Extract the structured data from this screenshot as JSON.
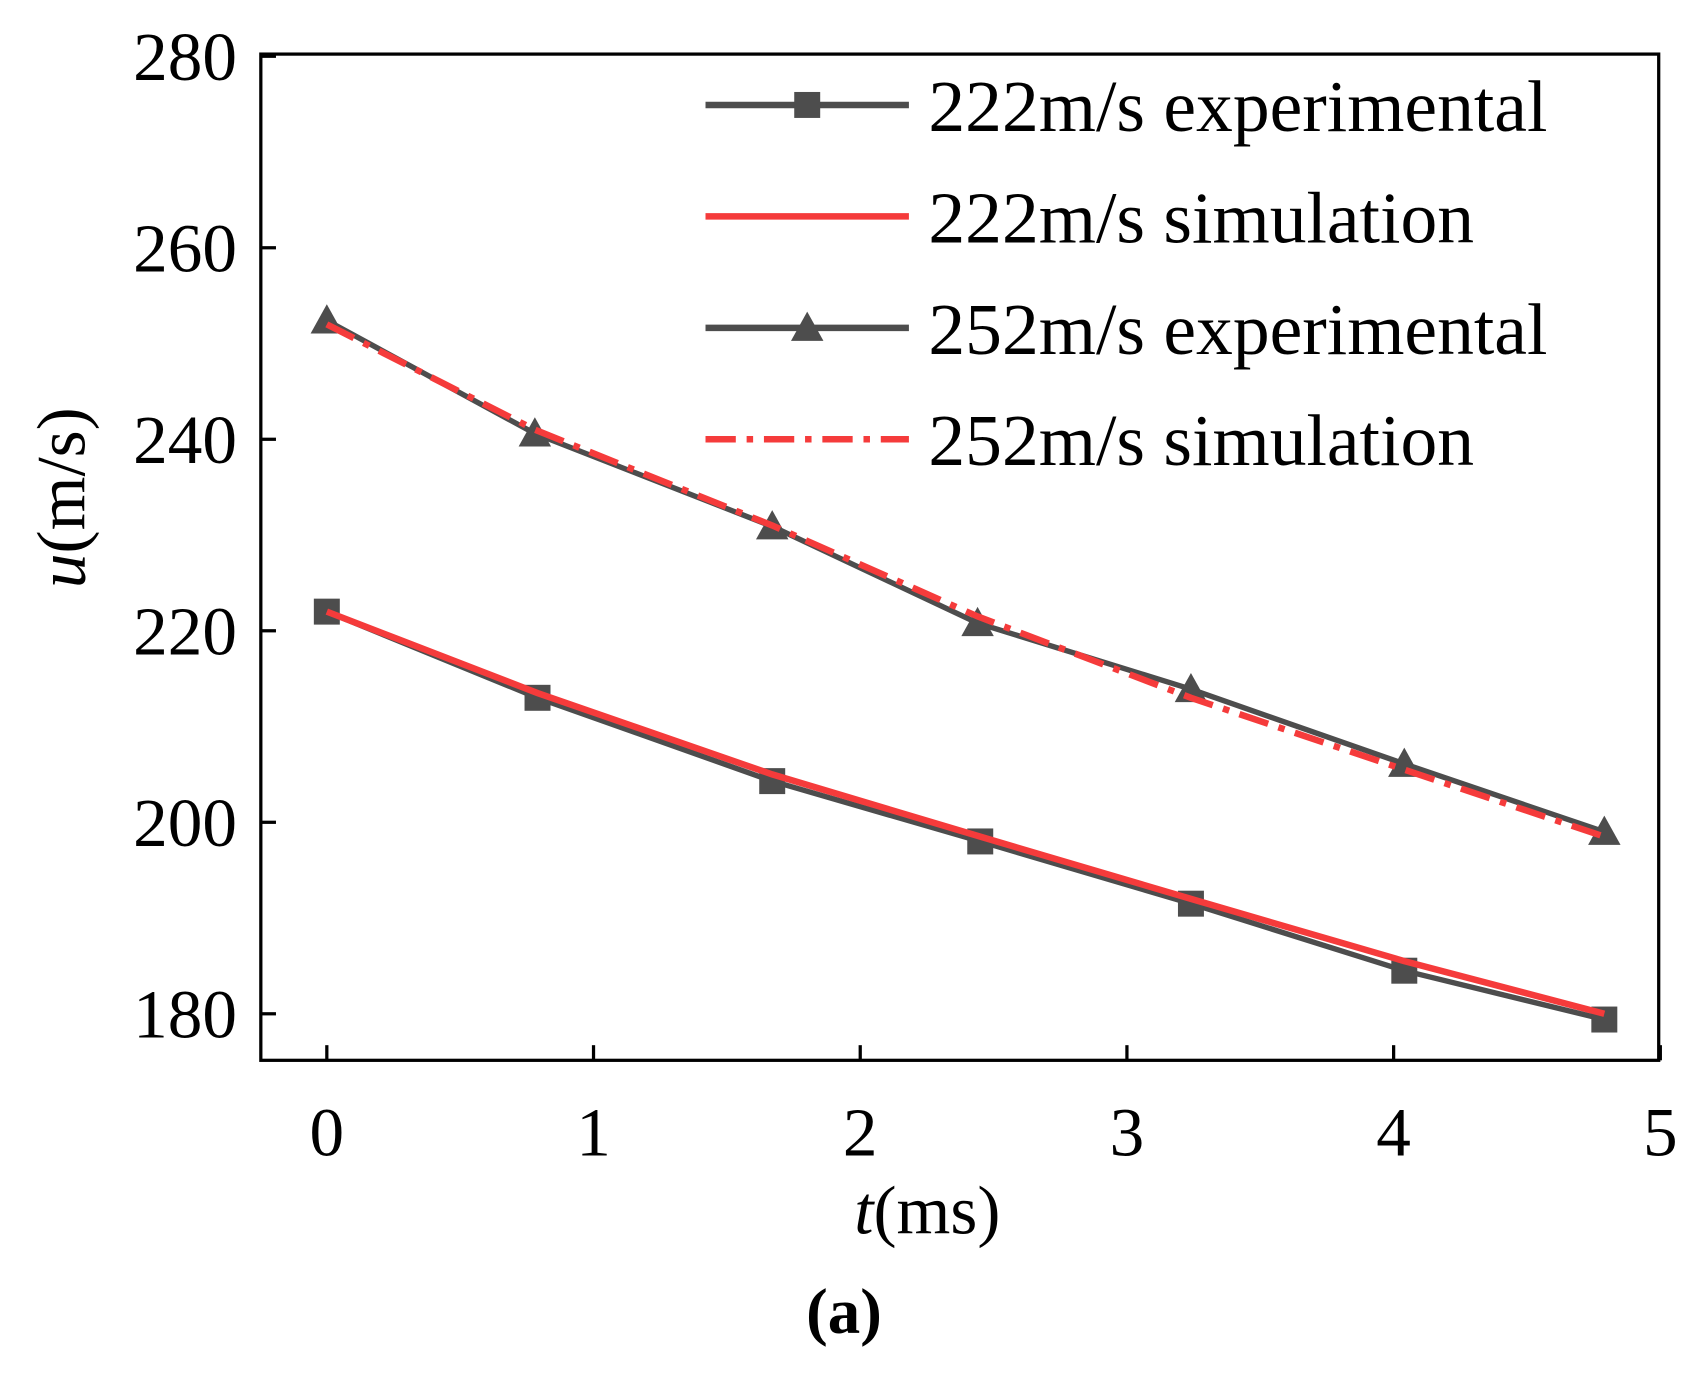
{
  "chart_data": {
    "type": "line",
    "title": "",
    "caption": "(a)",
    "xlabel_var": "t",
    "xlabel_unit": "(ms)",
    "ylabel_var": "u",
    "ylabel_unit": "(m/s)",
    "xlim": [
      -0.25,
      5
    ],
    "ylim": [
      175,
      280
    ],
    "xticks": [
      0,
      1,
      2,
      3,
      4,
      5
    ],
    "yticks": [
      180,
      200,
      220,
      240,
      260,
      280
    ],
    "grid": false,
    "legend_position": "top-right",
    "series": [
      {
        "name": "222m/s experimental",
        "color": "#4d4d4d",
        "marker": "square",
        "dash": "solid",
        "x": [
          0,
          0.79,
          1.67,
          2.45,
          3.24,
          4.04,
          4.79
        ],
        "y": [
          222,
          213,
          204.3,
          198,
          191.5,
          184.5,
          179.4
        ]
      },
      {
        "name": "222m/s simulation",
        "color": "#f53b3b",
        "marker": "none",
        "dash": "solid",
        "x": [
          0,
          0.79,
          1.67,
          2.45,
          3.24,
          4.04,
          4.79
        ],
        "y": [
          222,
          213.5,
          205,
          198.5,
          192,
          185.5,
          180
        ]
      },
      {
        "name": "252m/s experimental",
        "color": "#4d4d4d",
        "marker": "triangle",
        "dash": "solid",
        "x": [
          0,
          0.78,
          1.67,
          2.44,
          3.24,
          4.04,
          4.79
        ],
        "y": [
          252.4,
          240.6,
          230.9,
          220.8,
          213.9,
          206.1,
          199
        ]
      },
      {
        "name": "252m/s simulation",
        "color": "#f53b3b",
        "marker": "none",
        "dash": "dashdot",
        "x": [
          0,
          0.78,
          1.67,
          2.44,
          3.24,
          4.04,
          4.79
        ],
        "y": [
          252,
          241,
          231,
          221.5,
          213,
          205.5,
          198.5
        ]
      }
    ]
  }
}
